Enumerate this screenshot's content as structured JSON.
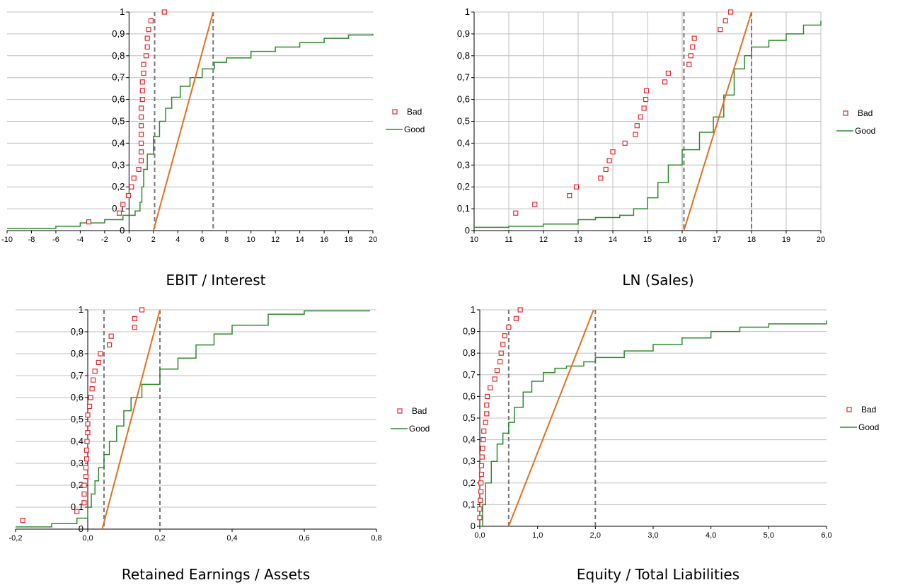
{
  "colors": {
    "bad": "#e8262b",
    "good": "#2e8b2e",
    "fit_line": "#e07020",
    "threshold": "#777777",
    "grid": "#bfbfbf"
  },
  "chart_data": [
    {
      "type": "scatter",
      "title": "EBIT / Interest",
      "xlim": [
        -10,
        20
      ],
      "ylim": [
        0,
        1
      ],
      "xticks": [
        -10,
        -8,
        -6,
        -4,
        -2,
        0,
        2,
        4,
        6,
        8,
        10,
        12,
        14,
        16,
        18,
        20
      ],
      "xtick_labels": [
        "-10",
        "-8",
        "-6",
        "-4",
        "-2",
        "0",
        "2",
        "4",
        "6",
        "8",
        "10",
        "12",
        "14",
        "16",
        "18",
        "20"
      ],
      "yticks": [
        0,
        0.1,
        0.2,
        0.3,
        0.4,
        0.5,
        0.6,
        0.7,
        0.8,
        0.9,
        1
      ],
      "ytick_labels": [
        "0",
        "0,1",
        "0,2",
        "0,3",
        "0,4",
        "0,5",
        "0,6",
        "0,7",
        "0,8",
        "0,9",
        "1"
      ],
      "grid_vertical": false,
      "legend": [
        "Bad",
        "Good"
      ],
      "bad": [
        [
          -3.3,
          0.04
        ],
        [
          -0.8,
          0.08
        ],
        [
          -0.5,
          0.12
        ],
        [
          -0.05,
          0.16
        ],
        [
          0.2,
          0.2
        ],
        [
          0.4,
          0.24
        ],
        [
          0.8,
          0.28
        ],
        [
          1,
          0.32
        ],
        [
          1,
          0.36
        ],
        [
          1,
          0.4
        ],
        [
          1,
          0.44
        ],
        [
          1,
          0.48
        ],
        [
          1,
          0.52
        ],
        [
          1,
          0.56
        ],
        [
          1.1,
          0.6
        ],
        [
          1.1,
          0.64
        ],
        [
          1.1,
          0.68
        ],
        [
          1.2,
          0.72
        ],
        [
          1.2,
          0.76
        ],
        [
          1.4,
          0.8
        ],
        [
          1.5,
          0.84
        ],
        [
          1.5,
          0.88
        ],
        [
          1.6,
          0.92
        ],
        [
          1.8,
          0.96
        ],
        [
          2.9,
          1
        ]
      ],
      "good": [
        [
          -10,
          0.01
        ],
        [
          -6,
          0.02
        ],
        [
          -4,
          0.035
        ],
        [
          -2,
          0.05
        ],
        [
          -0.5,
          0.07
        ],
        [
          0.5,
          0.09
        ],
        [
          0.9,
          0.13
        ],
        [
          1.05,
          0.2
        ],
        [
          1.2,
          0.28
        ],
        [
          1.5,
          0.35
        ],
        [
          2,
          0.43
        ],
        [
          2.5,
          0.5
        ],
        [
          3,
          0.56
        ],
        [
          3.5,
          0.61
        ],
        [
          4.2,
          0.66
        ],
        [
          5,
          0.7
        ],
        [
          6,
          0.74
        ],
        [
          7,
          0.77
        ],
        [
          8,
          0.79
        ],
        [
          10,
          0.82
        ],
        [
          12,
          0.84
        ],
        [
          14,
          0.86
        ],
        [
          16,
          0.88
        ],
        [
          18,
          0.895
        ],
        [
          20,
          0.9
        ]
      ],
      "fit_line": [
        [
          2,
          0
        ],
        [
          6.9,
          1
        ]
      ],
      "thresholds": [
        2.1,
        6.9
      ]
    },
    {
      "type": "scatter",
      "title": "LN (Sales)",
      "xlim": [
        10,
        20
      ],
      "ylim": [
        0,
        1
      ],
      "xticks": [
        10,
        11,
        12,
        13,
        14,
        15,
        16,
        17,
        18,
        19,
        20
      ],
      "xtick_labels": [
        "10",
        "11",
        "12",
        "13",
        "14",
        "15",
        "16",
        "17",
        "18",
        "19",
        "20"
      ],
      "yticks": [
        0,
        0.1,
        0.2,
        0.3,
        0.4,
        0.5,
        0.6,
        0.7,
        0.8,
        0.9,
        1
      ],
      "ytick_labels": [
        "0",
        "0,1",
        "0,2",
        "0,3",
        "0,4",
        "0,5",
        "0,6",
        "0,7",
        "0,8",
        "0,9",
        "1"
      ],
      "grid_vertical": true,
      "legend": [
        "Bad",
        "Good"
      ],
      "bad": [
        [
          11.2,
          0.08
        ],
        [
          11.75,
          0.12
        ],
        [
          12.75,
          0.16
        ],
        [
          12.95,
          0.2
        ],
        [
          13.65,
          0.24
        ],
        [
          13.8,
          0.28
        ],
        [
          13.9,
          0.32
        ],
        [
          14,
          0.36
        ],
        [
          14.35,
          0.4
        ],
        [
          14.65,
          0.44
        ],
        [
          14.7,
          0.48
        ],
        [
          14.8,
          0.52
        ],
        [
          14.9,
          0.56
        ],
        [
          14.95,
          0.6
        ],
        [
          14.97,
          0.64
        ],
        [
          15.5,
          0.68
        ],
        [
          15.6,
          0.72
        ],
        [
          16.2,
          0.76
        ],
        [
          16.25,
          0.8
        ],
        [
          16.3,
          0.84
        ],
        [
          16.35,
          0.88
        ],
        [
          17.1,
          0.92
        ],
        [
          17.25,
          0.96
        ],
        [
          17.4,
          1
        ]
      ],
      "good": [
        [
          10,
          0.015
        ],
        [
          11,
          0.02
        ],
        [
          12,
          0.03
        ],
        [
          13,
          0.05
        ],
        [
          13.5,
          0.06
        ],
        [
          14.2,
          0.07
        ],
        [
          14.6,
          0.1
        ],
        [
          15,
          0.15
        ],
        [
          15.3,
          0.22
        ],
        [
          15.6,
          0.3
        ],
        [
          16,
          0.37
        ],
        [
          16.5,
          0.45
        ],
        [
          16.9,
          0.52
        ],
        [
          17.2,
          0.62
        ],
        [
          17.5,
          0.74
        ],
        [
          17.8,
          0.8
        ],
        [
          18,
          0.84
        ],
        [
          18.5,
          0.87
        ],
        [
          19,
          0.9
        ],
        [
          19.5,
          0.94
        ],
        [
          20,
          0.96
        ]
      ],
      "fit_line": [
        [
          16.05,
          0
        ],
        [
          18,
          1
        ]
      ],
      "thresholds": [
        16.05,
        18
      ]
    },
    {
      "type": "scatter",
      "title": "Retained Earnings / Assets",
      "xlim": [
        -0.2,
        0.8
      ],
      "ylim": [
        0,
        1
      ],
      "xticks": [
        -0.2,
        0,
        0.2,
        0.4,
        0.6,
        0.8
      ],
      "xtick_labels": [
        "-0,2",
        "0,0",
        "0,2",
        "0,4",
        "0,6",
        "0,8"
      ],
      "yticks": [
        0,
        0.1,
        0.2,
        0.3,
        0.4,
        0.5,
        0.6,
        0.7,
        0.8,
        0.9,
        1
      ],
      "ytick_labels": [
        "0",
        "0,1",
        "0,2",
        "0,3",
        "0,4",
        "0,5",
        "0,6",
        "0,7",
        "0,8",
        "0,9",
        "1"
      ],
      "grid_vertical": false,
      "legend": [
        "Bad",
        "Good"
      ],
      "bad": [
        [
          -0.18,
          0.04
        ],
        [
          -0.03,
          0.08
        ],
        [
          -0.01,
          0.12
        ],
        [
          -0.01,
          0.16
        ],
        [
          -0.01,
          0.2
        ],
        [
          -0.005,
          0.24
        ],
        [
          -0.005,
          0.28
        ],
        [
          -0.003,
          0.32
        ],
        [
          -0.003,
          0.36
        ],
        [
          -0.002,
          0.4
        ],
        [
          0,
          0.44
        ],
        [
          0,
          0.48
        ],
        [
          0,
          0.52
        ],
        [
          0.005,
          0.56
        ],
        [
          0.008,
          0.6
        ],
        [
          0.012,
          0.64
        ],
        [
          0.015,
          0.68
        ],
        [
          0.02,
          0.72
        ],
        [
          0.03,
          0.76
        ],
        [
          0.035,
          0.8
        ],
        [
          0.06,
          0.84
        ],
        [
          0.065,
          0.88
        ],
        [
          0.13,
          0.92
        ],
        [
          0.13,
          0.96
        ],
        [
          0.15,
          1
        ]
      ],
      "good": [
        [
          -0.2,
          0.01
        ],
        [
          -0.1,
          0.025
        ],
        [
          -0.03,
          0.05
        ],
        [
          0,
          0.1
        ],
        [
          0.01,
          0.16
        ],
        [
          0.02,
          0.22
        ],
        [
          0.03,
          0.28
        ],
        [
          0.045,
          0.34
        ],
        [
          0.06,
          0.4
        ],
        [
          0.08,
          0.47
        ],
        [
          0.1,
          0.54
        ],
        [
          0.12,
          0.6
        ],
        [
          0.15,
          0.66
        ],
        [
          0.2,
          0.73
        ],
        [
          0.25,
          0.78
        ],
        [
          0.3,
          0.84
        ],
        [
          0.35,
          0.89
        ],
        [
          0.4,
          0.93
        ],
        [
          0.5,
          0.98
        ],
        [
          0.6,
          0.995
        ],
        [
          0.78,
          1
        ]
      ],
      "fit_line": [
        [
          0.04,
          0
        ],
        [
          0.2,
          1
        ]
      ],
      "thresholds": [
        0.045,
        0.2
      ]
    },
    {
      "type": "scatter",
      "title": "Equity / Total Liabilities",
      "xlim": [
        0,
        6
      ],
      "ylim": [
        0,
        1
      ],
      "xticks": [
        0,
        1,
        2,
        3,
        4,
        5,
        6
      ],
      "xtick_labels": [
        "0,0",
        "1,0",
        "2,0",
        "3,0",
        "4,0",
        "5,0",
        "6,0"
      ],
      "yticks": [
        0,
        0.1,
        0.2,
        0.3,
        0.4,
        0.5,
        0.6,
        0.7,
        0.8,
        0.9,
        1
      ],
      "ytick_labels": [
        "0",
        "0,1",
        "0,2",
        "0,3",
        "0,4",
        "0,5",
        "0,6",
        "0,7",
        "0,8",
        "0,9",
        "1"
      ],
      "grid_vertical": false,
      "legend": [
        "Bad",
        "Good"
      ],
      "bad": [
        [
          0,
          0.04
        ],
        [
          0,
          0.08
        ],
        [
          0.01,
          0.12
        ],
        [
          0.02,
          0.16
        ],
        [
          0.02,
          0.2
        ],
        [
          0.03,
          0.24
        ],
        [
          0.03,
          0.28
        ],
        [
          0.04,
          0.32
        ],
        [
          0.05,
          0.36
        ],
        [
          0.06,
          0.4
        ],
        [
          0.07,
          0.44
        ],
        [
          0.1,
          0.48
        ],
        [
          0.12,
          0.52
        ],
        [
          0.12,
          0.56
        ],
        [
          0.13,
          0.6
        ],
        [
          0.18,
          0.64
        ],
        [
          0.26,
          0.68
        ],
        [
          0.3,
          0.72
        ],
        [
          0.35,
          0.76
        ],
        [
          0.37,
          0.8
        ],
        [
          0.4,
          0.84
        ],
        [
          0.43,
          0.88
        ],
        [
          0.5,
          0.92
        ],
        [
          0.63,
          0.96
        ],
        [
          0.7,
          1
        ]
      ],
      "good": [
        [
          0,
          0
        ],
        [
          0.05,
          0.1
        ],
        [
          0.1,
          0.2
        ],
        [
          0.2,
          0.3
        ],
        [
          0.3,
          0.38
        ],
        [
          0.4,
          0.43
        ],
        [
          0.5,
          0.48
        ],
        [
          0.6,
          0.55
        ],
        [
          0.75,
          0.62
        ],
        [
          0.9,
          0.67
        ],
        [
          1.1,
          0.71
        ],
        [
          1.3,
          0.73
        ],
        [
          1.5,
          0.74
        ],
        [
          1.8,
          0.76
        ],
        [
          2,
          0.78
        ],
        [
          2.5,
          0.81
        ],
        [
          3,
          0.84
        ],
        [
          3.5,
          0.87
        ],
        [
          4,
          0.9
        ],
        [
          4.5,
          0.92
        ],
        [
          5,
          0.935
        ],
        [
          6,
          0.95
        ]
      ],
      "fit_line": [
        [
          0.5,
          0
        ],
        [
          1.97,
          1
        ]
      ],
      "thresholds": [
        0.5,
        2
      ]
    }
  ]
}
